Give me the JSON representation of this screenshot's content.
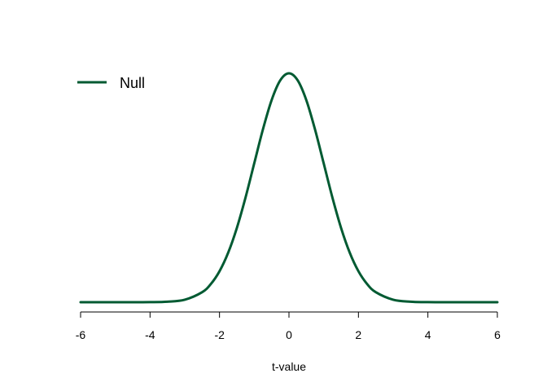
{
  "chart_data": {
    "type": "line",
    "xlabel": "t-value",
    "ylabel": "",
    "xlim": [
      -6,
      6
    ],
    "ylim": [
      0,
      0.4
    ],
    "x_ticks": [
      "-6",
      "-4",
      "-2",
      "0",
      "2",
      "4",
      "6"
    ],
    "y_axis_visible": false,
    "grid": false,
    "legend_position": "top-left",
    "series": [
      {
        "name": "Null",
        "color": "#005a32",
        "x": [
          -6,
          -5.5,
          -5,
          -4.5,
          -4,
          -3.5,
          -3,
          -2.5,
          -2.25,
          -2,
          -1.75,
          -1.5,
          -1.25,
          -1,
          -0.75,
          -0.5,
          -0.25,
          0,
          0.25,
          0.5,
          0.75,
          1,
          1.25,
          1.5,
          1.75,
          2,
          2.25,
          2.5,
          3,
          3.5,
          4,
          4.5,
          5,
          5.5,
          6
        ],
        "y": [
          0.0,
          0.0,
          0.0,
          0.0,
          0.0001,
          0.0009,
          0.0044,
          0.0175,
          0.0317,
          0.054,
          0.0863,
          0.1295,
          0.1826,
          0.242,
          0.3011,
          0.3521,
          0.3867,
          0.3989,
          0.3867,
          0.3521,
          0.3011,
          0.242,
          0.1826,
          0.1295,
          0.0863,
          0.054,
          0.0317,
          0.0175,
          0.0044,
          0.0009,
          0.0001,
          0.0,
          0.0,
          0.0,
          0.0
        ]
      }
    ]
  }
}
